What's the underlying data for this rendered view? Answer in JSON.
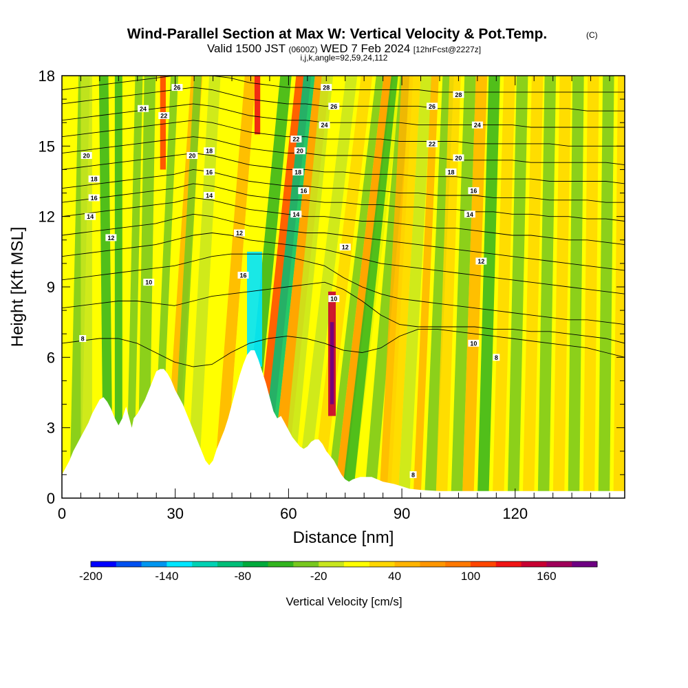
{
  "chart_data": {
    "type": "heatmap",
    "title": "Wind-Parallel Section at Max W: Vertical Velocity & Pot.Temp.",
    "title_unit": "(C)",
    "subtitle_main": "Valid 1500 JST",
    "subtitle_utc": "(0600Z)",
    "subtitle_date": "WED 7 Feb 2024",
    "subtitle_fcst": "[12hrFcst@2227z]",
    "subtitle_line3": "i,j,k,angle=92,59,24,112",
    "xlabel": "Distance [nm]",
    "ylabel": "Height [Kft MSL]",
    "xlim": [
      0,
      149
    ],
    "ylim": [
      0,
      18
    ],
    "x_ticks": [
      0,
      30,
      60,
      90,
      120
    ],
    "y_ticks": [
      0,
      3,
      6,
      9,
      12,
      15,
      18
    ],
    "colorbar": {
      "label": "Vertical Velocity [cm/s]",
      "min": -200,
      "max": 200,
      "step": 20,
      "tick_labels": [
        "-200",
        "-140",
        "-80",
        "-20",
        "40",
        "100",
        "160"
      ],
      "colors": [
        "#0000ff",
        "#0050f0",
        "#0096f0",
        "#00e6ff",
        "#00d2b4",
        "#00be78",
        "#00aa3c",
        "#32b41e",
        "#78c81e",
        "#c8e61e",
        "#ffff00",
        "#ffd700",
        "#ffb400",
        "#ff9600",
        "#ff7800",
        "#ff4600",
        "#f01414",
        "#c80032",
        "#a0005a",
        "#6e0082"
      ]
    },
    "terrain": [
      [
        0,
        1.0
      ],
      [
        1,
        1.3
      ],
      [
        2,
        1.6
      ],
      [
        3,
        2.0
      ],
      [
        4,
        2.3
      ],
      [
        5,
        2.6
      ],
      [
        6,
        2.9
      ],
      [
        7,
        3.2
      ],
      [
        8,
        3.6
      ],
      [
        9,
        3.9
      ],
      [
        10,
        4.2
      ],
      [
        11,
        4.3
      ],
      [
        12,
        4.1
      ],
      [
        13,
        3.8
      ],
      [
        14,
        3.4
      ],
      [
        15,
        3.1
      ],
      [
        16,
        3.4
      ],
      [
        17,
        3.9
      ],
      [
        18,
        3.3
      ],
      [
        18.5,
        3.0
      ],
      [
        19,
        3.4
      ],
      [
        20,
        3.6
      ],
      [
        21,
        3.9
      ],
      [
        22,
        4.2
      ],
      [
        23,
        4.6
      ],
      [
        24,
        5.0
      ],
      [
        25,
        5.4
      ],
      [
        26,
        5.5
      ],
      [
        27,
        5.5
      ],
      [
        28,
        5.3
      ],
      [
        29,
        5.0
      ],
      [
        30,
        4.6
      ],
      [
        31,
        4.3
      ],
      [
        32,
        4.0
      ],
      [
        33,
        3.6
      ],
      [
        34,
        3.2
      ],
      [
        35,
        2.8
      ],
      [
        36,
        2.4
      ],
      [
        37,
        2.0
      ],
      [
        38,
        1.6
      ],
      [
        39,
        1.4
      ],
      [
        40,
        1.6
      ],
      [
        41,
        2.1
      ],
      [
        42,
        2.5
      ],
      [
        43,
        2.9
      ],
      [
        44,
        3.4
      ],
      [
        45,
        4.0
      ],
      [
        46,
        4.6
      ],
      [
        47,
        5.2
      ],
      [
        48,
        5.7
      ],
      [
        49,
        6.1
      ],
      [
        50,
        6.3
      ],
      [
        51,
        6.3
      ],
      [
        52,
        5.9
      ],
      [
        53,
        5.4
      ],
      [
        54,
        4.9
      ],
      [
        55,
        4.3
      ],
      [
        56,
        3.7
      ],
      [
        57,
        3.4
      ],
      [
        58,
        3.5
      ],
      [
        59,
        3.2
      ],
      [
        60,
        2.9
      ],
      [
        61,
        2.6
      ],
      [
        62,
        2.4
      ],
      [
        63,
        2.2
      ],
      [
        64,
        2.1
      ],
      [
        65,
        2.2
      ],
      [
        66,
        2.4
      ],
      [
        67,
        2.5
      ],
      [
        68,
        2.5
      ],
      [
        69,
        2.3
      ],
      [
        70,
        2.0
      ],
      [
        71,
        1.8
      ],
      [
        72,
        1.6
      ],
      [
        73,
        1.3
      ],
      [
        74,
        1.0
      ],
      [
        75,
        0.8
      ],
      [
        76,
        0.7
      ],
      [
        77,
        0.8
      ],
      [
        79,
        0.9
      ],
      [
        82,
        0.9
      ],
      [
        85,
        0.7
      ],
      [
        88,
        0.6
      ],
      [
        90,
        0.5
      ],
      [
        92,
        0.4
      ],
      [
        95,
        0.35
      ],
      [
        100,
        0.3
      ],
      [
        120,
        0.3
      ],
      [
        149,
        0.3
      ]
    ],
    "contours": [
      {
        "label": "8",
        "y": [
          6.6,
          6.7,
          6.8,
          6.8,
          6.6,
          6.2,
          5.8,
          5.6,
          5.7,
          6.2,
          6.6,
          6.8,
          6.9,
          6.8,
          6.6,
          6.3,
          6.2,
          6.4,
          6.9,
          7.2,
          7.2,
          7.1,
          7.0,
          6.9,
          6.8,
          6.7,
          6.6,
          6.5,
          6.4,
          6.2,
          6.0
        ]
      },
      {
        "label": "10",
        "y": [
          8.1,
          8.2,
          8.3,
          8.4,
          8.4,
          8.3,
          8.2,
          8.4,
          8.6,
          8.7,
          8.8,
          8.9,
          9.0,
          9.1,
          9.2,
          8.9,
          8.4,
          7.8,
          7.4,
          7.3,
          7.3,
          7.3,
          7.3,
          7.2,
          7.2,
          7.1,
          7.1,
          7.0,
          6.9,
          6.8,
          6.6
        ]
      },
      {
        "label": "",
        "y": [
          9.3,
          9.4,
          9.5,
          9.6,
          9.7,
          9.8,
          9.9,
          10.1,
          10.3,
          10.4,
          10.4,
          10.4,
          10.3,
          10.1,
          9.9,
          9.4,
          9.0,
          8.7,
          8.5,
          8.4,
          8.3,
          8.2,
          8.1,
          8.0,
          7.9,
          7.8,
          7.7,
          7.6,
          7.6,
          7.5,
          7.4
        ]
      },
      {
        "label": "",
        "y": [
          10.3,
          10.4,
          10.5,
          10.6,
          10.7,
          10.8,
          11.0,
          11.2,
          11.3,
          11.2,
          11.0,
          10.9,
          10.8,
          10.7,
          10.6,
          10.4,
          10.2,
          10.0,
          9.9,
          9.8,
          9.7,
          9.6,
          9.5,
          9.4,
          9.3,
          9.2,
          9.1,
          9.0,
          8.9,
          8.8,
          8.7
        ]
      },
      {
        "label": "12",
        "y": [
          11.2,
          11.3,
          11.4,
          11.5,
          11.6,
          11.7,
          11.9,
          12.1,
          12.0,
          11.8,
          11.6,
          11.5,
          11.4,
          11.3,
          11.3,
          11.2,
          11.1,
          11.0,
          10.9,
          10.8,
          10.7,
          10.6,
          10.5,
          10.4,
          10.3,
          10.2,
          10.1,
          10.0,
          9.9,
          9.8,
          9.7
        ]
      },
      {
        "label": "",
        "y": [
          12.0,
          12.1,
          12.2,
          12.3,
          12.4,
          12.5,
          12.6,
          12.8,
          12.7,
          12.5,
          12.3,
          12.2,
          12.1,
          12.0,
          12.0,
          11.9,
          11.8,
          11.8,
          11.7,
          11.6,
          11.5,
          11.5,
          11.4,
          11.3,
          11.2,
          11.2,
          11.1,
          11.0,
          11.0,
          10.9,
          10.8
        ]
      },
      {
        "label": "14",
        "y": [
          12.6,
          12.7,
          12.8,
          12.9,
          13.0,
          13.1,
          13.2,
          13.4,
          13.3,
          13.1,
          12.9,
          12.8,
          12.7,
          12.7,
          12.6,
          12.6,
          12.5,
          12.5,
          12.4,
          12.4,
          12.3,
          12.3,
          12.2,
          12.2,
          12.1,
          12.1,
          12.0,
          12.0,
          11.9,
          11.9,
          11.8
        ]
      },
      {
        "label": "16",
        "y": [
          13.2,
          13.3,
          13.4,
          13.5,
          13.6,
          13.7,
          13.8,
          14.0,
          13.9,
          13.7,
          13.5,
          13.4,
          13.3,
          13.3,
          13.2,
          13.2,
          13.1,
          13.1,
          13.0,
          13.0,
          12.9,
          12.9,
          12.9,
          12.8,
          12.8,
          12.8,
          12.7,
          12.7,
          12.7,
          12.6,
          12.6
        ]
      },
      {
        "label": "18",
        "y": [
          14.0,
          14.1,
          14.2,
          14.3,
          14.4,
          14.5,
          14.6,
          14.7,
          14.6,
          14.4,
          14.2,
          14.1,
          14.0,
          14.0,
          13.9,
          13.9,
          13.8,
          13.8,
          13.8,
          13.7,
          13.7,
          13.7,
          13.6,
          13.6,
          13.6,
          13.6,
          13.5,
          13.5,
          13.5,
          13.5,
          13.4
        ]
      },
      {
        "label": "20",
        "y": [
          14.7,
          14.8,
          14.9,
          15.0,
          15.1,
          15.2,
          15.3,
          15.4,
          15.3,
          15.1,
          14.9,
          14.8,
          14.7,
          14.7,
          14.6,
          14.6,
          14.6,
          14.5,
          14.5,
          14.5,
          14.5,
          14.4,
          14.4,
          14.4,
          14.4,
          14.3,
          14.3,
          14.3,
          14.3,
          14.3,
          14.2
        ]
      },
      {
        "label": "22",
        "y": [
          15.4,
          15.5,
          15.6,
          15.7,
          15.8,
          15.9,
          16.0,
          16.1,
          16.0,
          15.8,
          15.6,
          15.5,
          15.4,
          15.4,
          15.3,
          15.3,
          15.3,
          15.3,
          15.2,
          15.2,
          15.2,
          15.2,
          15.1,
          15.1,
          15.1,
          15.1,
          15.1,
          15.0,
          15.0,
          15.0,
          15.0
        ]
      },
      {
        "label": "24",
        "y": [
          16.1,
          16.2,
          16.3,
          16.4,
          16.5,
          16.6,
          16.7,
          16.8,
          16.7,
          16.5,
          16.3,
          16.2,
          16.1,
          16.1,
          16.0,
          16.0,
          16.0,
          16.0,
          16.0,
          15.9,
          15.9,
          15.9,
          15.9,
          15.9,
          15.9,
          15.8,
          15.8,
          15.8,
          15.8,
          15.8,
          15.8
        ]
      },
      {
        "label": "26",
        "y": [
          16.8,
          16.9,
          17.0,
          17.1,
          17.2,
          17.3,
          17.4,
          17.5,
          17.4,
          17.2,
          17.0,
          16.9,
          16.8,
          16.8,
          16.7,
          16.7,
          16.7,
          16.7,
          16.7,
          16.7,
          16.6,
          16.6,
          16.6,
          16.6,
          16.6,
          16.6,
          16.6,
          16.6,
          16.5,
          16.5,
          16.5
        ]
      },
      {
        "label": "28",
        "y": [
          17.4,
          17.5,
          17.6,
          17.7,
          17.8,
          17.9,
          18.0,
          18.0,
          18.0,
          17.9,
          17.7,
          17.6,
          17.5,
          17.5,
          17.4,
          17.4,
          17.4,
          17.4,
          17.4,
          17.4,
          17.3,
          17.3,
          17.3,
          17.3,
          17.3,
          17.3,
          17.3,
          17.3,
          17.3,
          17.3,
          17.3
        ]
      }
    ],
    "contour_label_positions": [
      {
        "text": "8",
        "x": 5.5,
        "y": 6.8
      },
      {
        "text": "10",
        "x": 23,
        "y": 9.2
      },
      {
        "text": "12",
        "x": 13,
        "y": 11.1
      },
      {
        "text": "14",
        "x": 7.5,
        "y": 12.0
      },
      {
        "text": "16",
        "x": 8.5,
        "y": 12.8
      },
      {
        "text": "18",
        "x": 8.5,
        "y": 13.6
      },
      {
        "text": "20",
        "x": 6.5,
        "y": 14.6
      },
      {
        "text": "24",
        "x": 21.5,
        "y": 16.6
      },
      {
        "text": "22",
        "x": 27,
        "y": 16.3
      },
      {
        "text": "26",
        "x": 30.5,
        "y": 17.5
      },
      {
        "text": "20",
        "x": 34.5,
        "y": 14.6
      },
      {
        "text": "18",
        "x": 39,
        "y": 14.8
      },
      {
        "text": "16",
        "x": 39,
        "y": 13.9
      },
      {
        "text": "14",
        "x": 39,
        "y": 12.9
      },
      {
        "text": "12",
        "x": 47,
        "y": 11.3
      },
      {
        "text": "16",
        "x": 48,
        "y": 9.5
      },
      {
        "text": "22",
        "x": 62,
        "y": 15.3
      },
      {
        "text": "20",
        "x": 63,
        "y": 14.8
      },
      {
        "text": "18",
        "x": 62.5,
        "y": 13.9
      },
      {
        "text": "16",
        "x": 64,
        "y": 13.1
      },
      {
        "text": "14",
        "x": 62,
        "y": 12.1
      },
      {
        "text": "10",
        "x": 72,
        "y": 8.5
      },
      {
        "text": "12",
        "x": 75,
        "y": 10.7
      },
      {
        "text": "24",
        "x": 69.5,
        "y": 15.9
      },
      {
        "text": "26",
        "x": 72,
        "y": 16.7
      },
      {
        "text": "28",
        "x": 70,
        "y": 17.5
      },
      {
        "text": "26",
        "x": 98,
        "y": 16.7
      },
      {
        "text": "28",
        "x": 105,
        "y": 17.2
      },
      {
        "text": "24",
        "x": 110,
        "y": 15.9
      },
      {
        "text": "22",
        "x": 98,
        "y": 15.1
      },
      {
        "text": "20",
        "x": 105,
        "y": 14.5
      },
      {
        "text": "18",
        "x": 103,
        "y": 13.9
      },
      {
        "text": "16",
        "x": 109,
        "y": 13.1
      },
      {
        "text": "14",
        "x": 108,
        "y": 12.1
      },
      {
        "text": "12",
        "x": 111,
        "y": 10.1
      },
      {
        "text": "10",
        "x": 109,
        "y": 6.6
      },
      {
        "text": "8",
        "x": 115,
        "y": 6.0
      },
      {
        "text": "8",
        "x": 93,
        "y": 1.0
      }
    ]
  }
}
